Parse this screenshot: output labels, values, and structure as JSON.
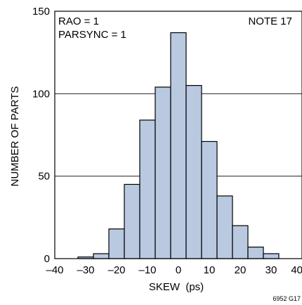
{
  "chart_data": {
    "type": "bar",
    "title": "",
    "xlabel": "SKEW  (ps)",
    "ylabel": "NUMBER OF PARTS",
    "xlim": [
      -40,
      40
    ],
    "ylim": [
      0,
      150
    ],
    "bin_width": 5,
    "bin_centers": [
      -30,
      -25,
      -20,
      -15,
      -10,
      -5,
      0,
      5,
      10,
      15,
      20,
      25,
      30
    ],
    "values": [
      1,
      3,
      18,
      45,
      84,
      104,
      137,
      105,
      71,
      38,
      20,
      7,
      3
    ],
    "x_ticks": [
      -40,
      -30,
      -20,
      -10,
      0,
      10,
      20,
      30,
      40
    ],
    "x_tick_labels": [
      "–40",
      "–30",
      "–20",
      "–10",
      "0",
      "10",
      "20",
      "30",
      "40"
    ],
    "y_ticks": [
      0,
      50,
      100,
      150
    ],
    "y_tick_labels": [
      "0",
      "50",
      "100",
      "150"
    ],
    "grid": "horizontal",
    "bar_color": "#b9c9e0",
    "annotations": {
      "condition_1": "RAO = 1",
      "condition_2": "PARSYNC = 1",
      "note": "NOTE 17"
    },
    "figure_id": "6952 G17"
  }
}
